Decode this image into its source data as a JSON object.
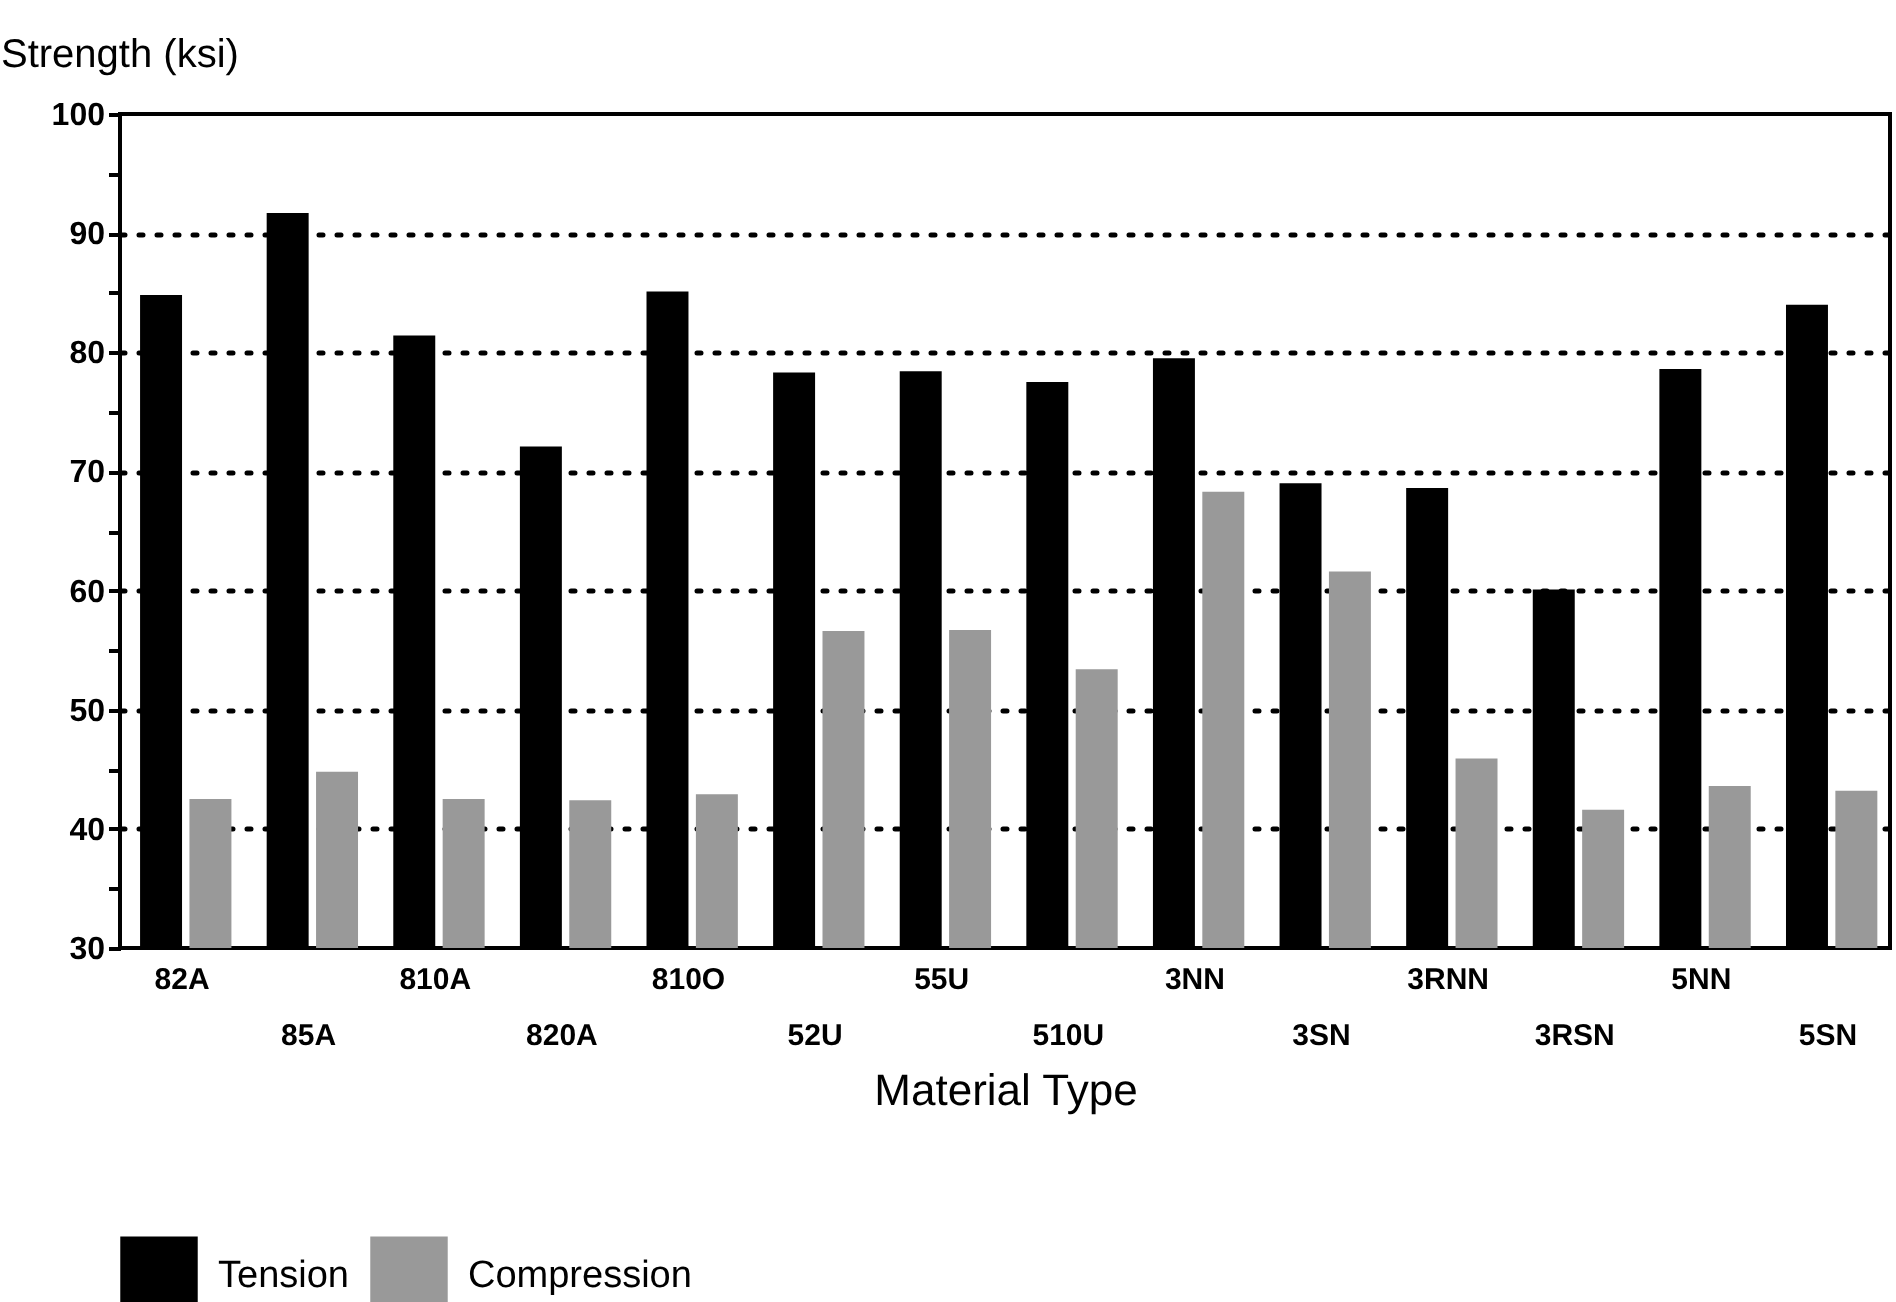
{
  "chart_data": {
    "type": "bar",
    "ylabel": "Strength (ksi)",
    "xlabel": "Material Type",
    "categories": [
      "82A",
      "85A",
      "810A",
      "820A",
      "810O",
      "52U",
      "55U",
      "510U",
      "3NN",
      "3SN",
      "3RNN",
      "3RSN",
      "5NN",
      "5SN"
    ],
    "series": [
      {
        "name": "Tension",
        "color": "#000000",
        "values": [
          84.8,
          91.7,
          81.4,
          72.1,
          85.1,
          78.3,
          78.4,
          77.5,
          79.5,
          69.0,
          68.6,
          60.1,
          78.6,
          84.0
        ]
      },
      {
        "name": "Compression",
        "color": "#999999",
        "values": [
          42.5,
          44.8,
          42.5,
          42.4,
          42.9,
          56.6,
          56.7,
          53.4,
          68.3,
          61.6,
          45.9,
          41.6,
          43.6,
          43.2
        ]
      }
    ],
    "ylim": [
      30,
      100
    ],
    "yticks": [
      30,
      {
        "value": 35,
        "label": null
      },
      40,
      {
        "value": 45,
        "label": null
      },
      50,
      {
        "value": 55,
        "label": null
      },
      60,
      {
        "value": 65,
        "label": null
      },
      70,
      {
        "value": 75,
        "label": null
      },
      80,
      {
        "value": 85,
        "label": null
      },
      90,
      {
        "value": 95,
        "label": null
      },
      100
    ],
    "grid": "y",
    "legend": "bottom"
  }
}
